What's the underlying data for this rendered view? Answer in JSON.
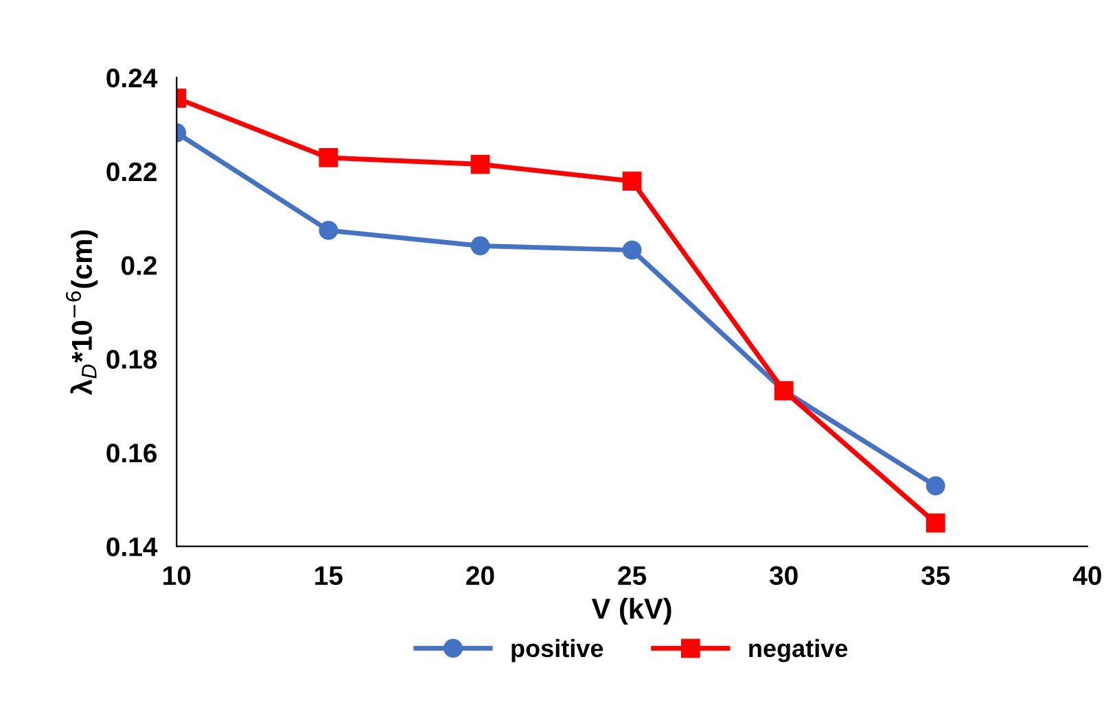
{
  "chart_data": {
    "type": "line",
    "xlabel": "V (kV)",
    "ylabel": "λ$_{D}$*10$^{−6}$(cm)",
    "x": [
      10,
      15,
      20,
      25,
      30,
      35
    ],
    "series": [
      {
        "name": "positive",
        "color": "#4472c4",
        "marker": "circle",
        "values": [
          0.2282,
          0.2074,
          0.2041,
          0.2032,
          0.1732,
          0.1529
        ]
      },
      {
        "name": "negative",
        "color": "#ff0000",
        "marker": "square",
        "values": [
          0.2356,
          0.2229,
          0.2215,
          0.2179,
          0.1732,
          0.145
        ]
      }
    ],
    "xlim": [
      10,
      40
    ],
    "xticks": [
      10,
      15,
      20,
      25,
      30,
      35,
      40
    ],
    "ylim": [
      0.14,
      0.24
    ],
    "yticks": [
      0.14,
      0.16,
      0.18,
      0.2,
      0.22,
      0.24
    ],
    "grid": false,
    "legend": "bottom",
    "line_style": "solid"
  }
}
